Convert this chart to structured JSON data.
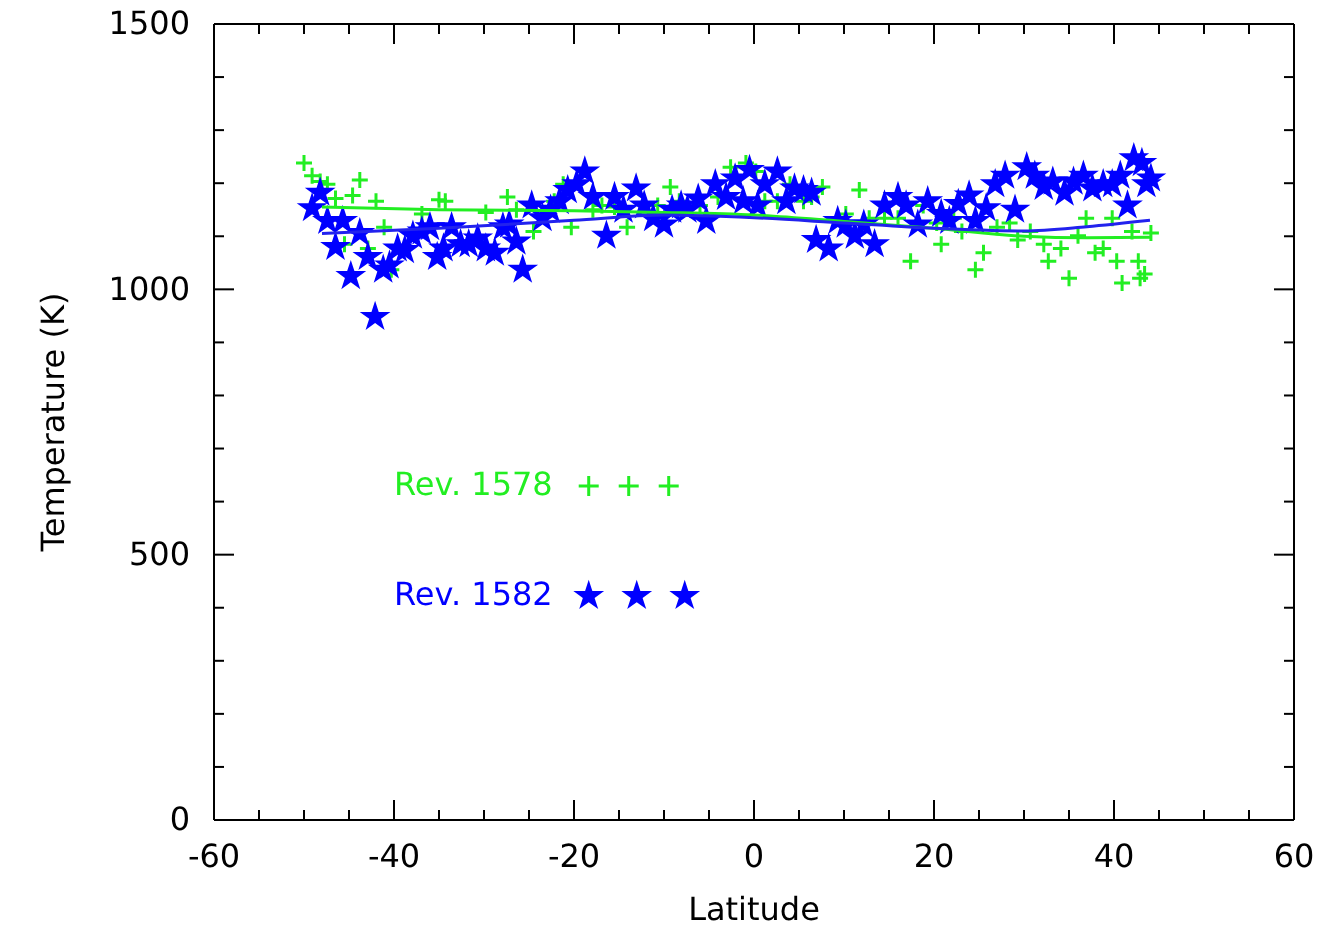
{
  "chart_data": {
    "type": "scatter",
    "xlabel": "Latitude",
    "ylabel": "Temperature (K)",
    "xlim": [
      -60,
      60
    ],
    "ylim": [
      0,
      1500
    ],
    "xticks": [
      -60,
      {
        "value": -55,
        "label": null
      },
      {
        "value": -50,
        "label": null
      },
      {
        "value": -45,
        "label": null
      },
      -40,
      {
        "value": -35,
        "label": null
      },
      {
        "value": -30,
        "label": null
      },
      {
        "value": -25,
        "label": null
      },
      -20,
      {
        "value": -15,
        "label": null
      },
      {
        "value": -10,
        "label": null
      },
      {
        "value": -5,
        "label": null
      },
      0,
      {
        "value": 5,
        "label": null
      },
      {
        "value": 10,
        "label": null
      },
      {
        "value": 15,
        "label": null
      },
      20,
      {
        "value": 25,
        "label": null
      },
      {
        "value": 30,
        "label": null
      },
      {
        "value": 35,
        "label": null
      },
      40,
      {
        "value": 45,
        "label": null
      },
      {
        "value": 50,
        "label": null
      },
      {
        "value": 55,
        "label": null
      },
      60
    ],
    "yticks": [
      0,
      {
        "value": 100,
        "label": null
      },
      {
        "value": 200,
        "label": null
      },
      {
        "value": 300,
        "label": null
      },
      {
        "value": 400,
        "label": null
      },
      500,
      {
        "value": 600,
        "label": null
      },
      {
        "value": 700,
        "label": null
      },
      {
        "value": 800,
        "label": null
      },
      {
        "value": 900,
        "label": null
      },
      1000,
      {
        "value": 1100,
        "label": null
      },
      {
        "value": 1200,
        "label": null
      },
      {
        "value": 1300,
        "label": null
      },
      {
        "value": 1400,
        "label": null
      },
      1500
    ],
    "legend": "left",
    "grid": false,
    "series": [
      {
        "name": "Rev. 1578",
        "color": "#22ee22",
        "marker": "cross",
        "x": [
          -50,
          -49.1,
          -48.2,
          -47.4,
          -46.5,
          -45.5,
          -44.6,
          -43.8,
          -42.9,
          -42,
          -41.1,
          -40.3,
          -36.9,
          -35,
          -34.3,
          -29.8,
          -27.4,
          -26.4,
          -24.5,
          -22.2,
          -21.2,
          -20.3,
          -17.9,
          -16.9,
          -15.5,
          -14.1,
          -10.7,
          -9.3,
          -8.3,
          -6,
          -4,
          -2.6,
          -0.9,
          0.2,
          1.2,
          2.6,
          4,
          5.5,
          6.4,
          7.6,
          10.2,
          11.7,
          12.8,
          14.5,
          16,
          17.4,
          18.8,
          20.3,
          20.8,
          22.2,
          23.1,
          24.6,
          25.5,
          27,
          28.4,
          29.3,
          30.7,
          32.2,
          32.7,
          34.1,
          35,
          36,
          36.9,
          37.9,
          38.8,
          39.8,
          40.3,
          40.9,
          42,
          42.7,
          42.9,
          43.4,
          44.1
        ],
        "values": [
          1238,
          1214,
          1203,
          1198,
          1171,
          1085,
          1177,
          1206,
          1077,
          1166,
          1117,
          1037,
          1142,
          1169,
          1166,
          1145,
          1174,
          1150,
          1109,
          1166,
          1198,
          1117,
          1150,
          1158,
          1155,
          1117,
          1158,
          1193,
          1166,
          1158,
          1174,
          1230,
          1238,
          1222,
          1166,
          1166,
          1198,
          1166,
          1174,
          1193,
          1142,
          1187,
          1134,
          1134,
          1134,
          1053,
          1158,
          1125,
          1085,
          1134,
          1109,
          1037,
          1069,
          1117,
          1125,
          1093,
          1109,
          1085,
          1053,
          1077,
          1021,
          1101,
          1134,
          1069,
          1077,
          1134,
          1053,
          1012,
          1109,
          1053,
          1021,
          1029,
          1106
        ]
      },
      {
        "name": "Rev. 1582",
        "color": "#0000ff",
        "marker": "star",
        "x": [
          -49.1,
          -48.2,
          -47.4,
          -46.5,
          -45.7,
          -44.8,
          -43.8,
          -42.9,
          -42.1,
          -41.2,
          -40.5,
          -39.6,
          -38.8,
          -37.9,
          -36.9,
          -36,
          -35.2,
          -34.5,
          -33.6,
          -32.6,
          -31.7,
          -30.7,
          -29.8,
          -28.8,
          -27.9,
          -27.2,
          -26.4,
          -25.7,
          -24.7,
          -23.5,
          -22.6,
          -21.6,
          -20.7,
          -19.7,
          -18.8,
          -17.9,
          -16.4,
          -15.5,
          -14.5,
          -13.1,
          -12.2,
          -11.2,
          -10,
          -9.1,
          -8.1,
          -7.4,
          -6.2,
          -5.3,
          -4.3,
          -3.1,
          -2.1,
          -1.2,
          -0.5,
          0.4,
          1.2,
          2.6,
          3.6,
          4.5,
          5.5,
          6.4,
          6.9,
          8.3,
          9.3,
          10.2,
          11.2,
          12.2,
          13.4,
          14.5,
          16,
          16.9,
          18.2,
          19.3,
          20.8,
          21.7,
          22.7,
          23.9,
          24.6,
          25.8,
          26.8,
          27.9,
          29,
          30.3,
          31.2,
          32.2,
          33.2,
          34.5,
          35.5,
          36.6,
          37.6,
          38.8,
          39.8,
          40.7,
          41.5,
          42.2,
          43.1,
          43.6,
          44.1
        ],
        "values": [
          1153,
          1182,
          1129,
          1080,
          1129,
          1025,
          1106,
          1061,
          948,
          1037,
          1045,
          1077,
          1074,
          1101,
          1109,
          1117,
          1061,
          1077,
          1117,
          1085,
          1085,
          1096,
          1077,
          1069,
          1117,
          1122,
          1090,
          1037,
          1158,
          1134,
          1150,
          1166,
          1187,
          1198,
          1222,
          1174,
          1101,
          1174,
          1150,
          1190,
          1158,
          1134,
          1122,
          1150,
          1158,
          1150,
          1171,
          1129,
          1198,
          1174,
          1209,
          1166,
          1225,
          1158,
          1198,
          1222,
          1166,
          1190,
          1187,
          1182,
          1093,
          1077,
          1129,
          1122,
          1101,
          1122,
          1085,
          1158,
          1174,
          1158,
          1122,
          1166,
          1142,
          1129,
          1161,
          1177,
          1129,
          1153,
          1198,
          1214,
          1150,
          1230,
          1214,
          1193,
          1203,
          1182,
          1203,
          1214,
          1190,
          1198,
          1198,
          1214,
          1158,
          1247,
          1238,
          1198,
          1209
        ]
      },
      {
        "type": "line",
        "color": "#22ee22",
        "marker": "none",
        "x": [
          -48,
          -35,
          -20,
          -10,
          0,
          10,
          20,
          30,
          37,
          44
        ],
        "values": [
          1155,
          1150,
          1148,
          1145,
          1140,
          1128,
          1115,
          1100,
          1097,
          1098
        ]
      },
      {
        "type": "line",
        "color": "#2222ee",
        "marker": "none",
        "x": [
          -48,
          -35,
          -20,
          -10,
          0,
          10,
          20,
          30,
          37,
          44
        ],
        "values": [
          1105,
          1115,
          1130,
          1140,
          1135,
          1125,
          1115,
          1110,
          1118,
          1130
        ]
      }
    ]
  }
}
